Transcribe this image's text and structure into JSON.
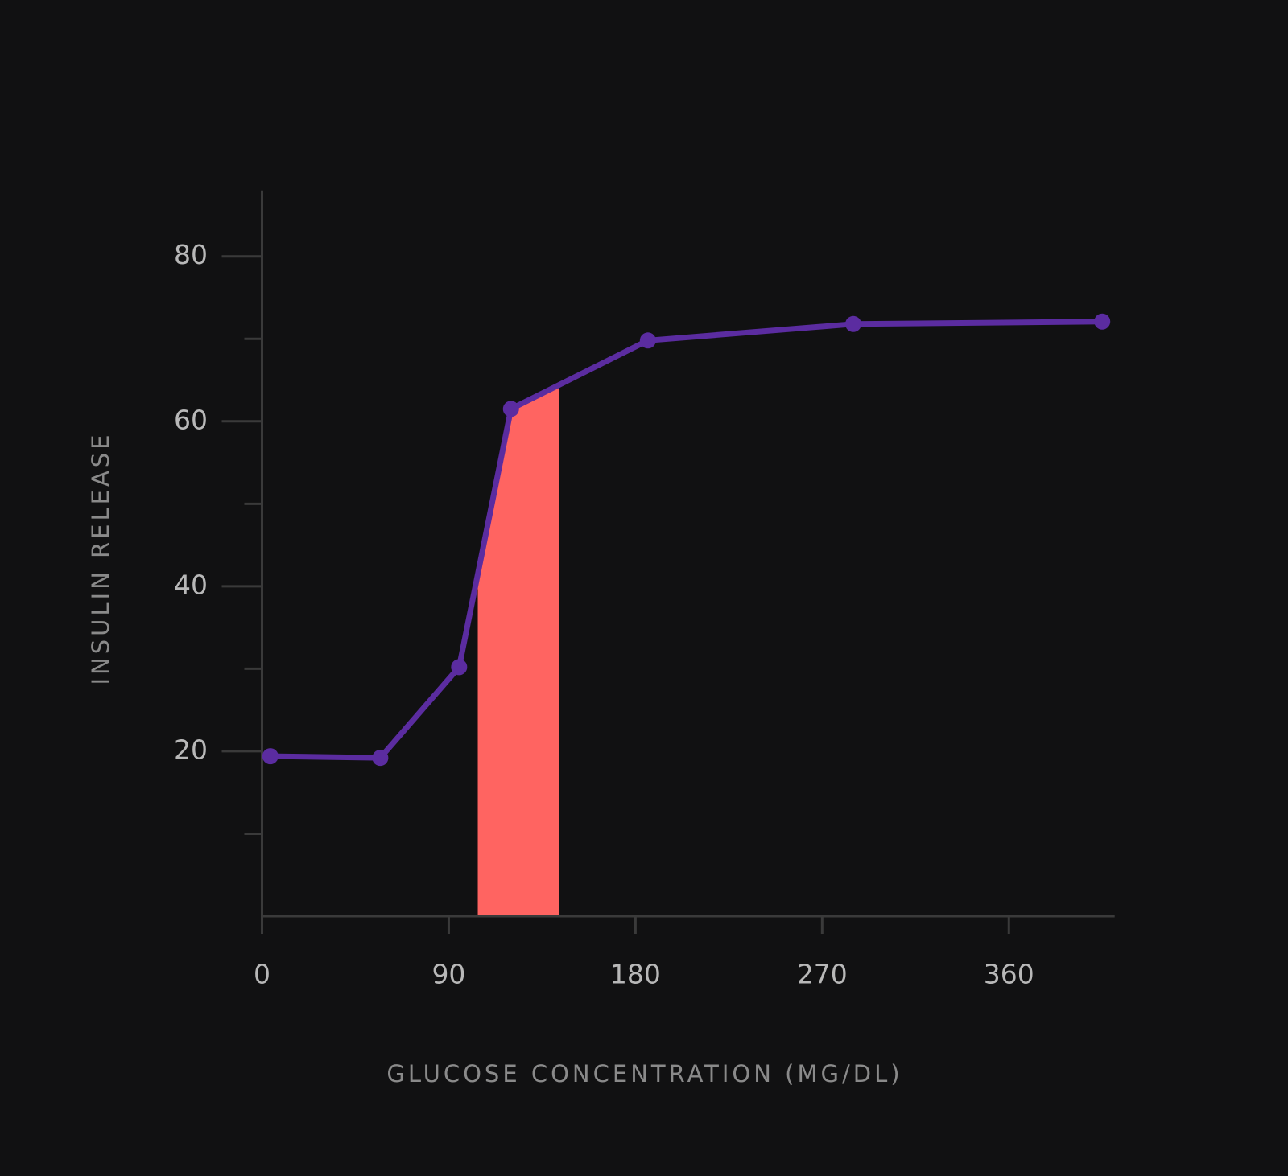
{
  "chart_data": {
    "type": "line",
    "x_label": "GLUCOSE CONCENTRATION (MG/DL)",
    "y_label": "INSULIN RELEASE",
    "x": [
      4,
      57,
      95,
      120,
      186,
      285,
      405
    ],
    "series": [
      {
        "name": "Insulin release",
        "color": "#5b2ca0",
        "values": [
          19.4,
          19.2,
          30.2,
          61.5,
          69.8,
          71.8,
          72.1
        ]
      }
    ],
    "xlim": [
      0,
      411
    ],
    "ylim": [
      0,
      88
    ],
    "xticks": [
      0,
      90,
      180,
      270,
      360
    ],
    "yticks": [
      20,
      40,
      60,
      80
    ],
    "y_minor_ticks": [
      10,
      30,
      50,
      70
    ],
    "highlight": {
      "x": [
        104,
        143
      ],
      "color": "#ff6461"
    }
  }
}
